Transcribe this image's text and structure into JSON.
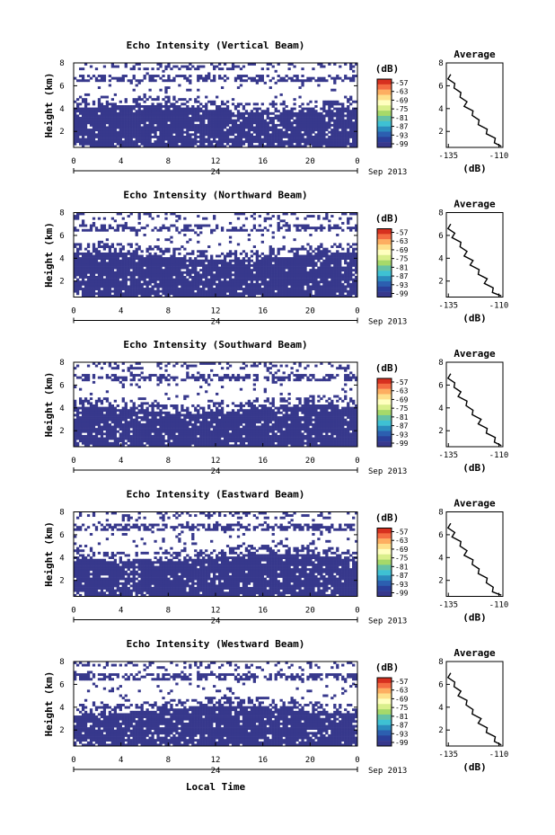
{
  "figure": {
    "xlabel": "Local Time",
    "colorbar_unit": "(dB)",
    "colorbar_ticks": [
      "-57",
      "-63",
      "-69",
      "-75",
      "-81",
      "-87",
      "-93",
      "-99"
    ],
    "colorbar_colors": [
      "#d7301f",
      "#f46d43",
      "#fdae61",
      "#fee08b",
      "#ffffbf",
      "#d9ef8b",
      "#a6d96a",
      "#66c2a5",
      "#3ec1d3",
      "#2b8cbe",
      "#2c5fb0",
      "#2b3f9a",
      "#37388c"
    ],
    "fill_color": "#37388c"
  },
  "chart_data": [
    {
      "type": "heatmap",
      "title": "Echo Intensity (Vertical Beam)",
      "ylabel": "Height (km)",
      "x_ticks": [
        "0",
        "4",
        "8",
        "12",
        "16",
        "20",
        "0"
      ],
      "y_ticks": [
        "8",
        "6",
        "4",
        "2"
      ],
      "date_label": "24",
      "date_suffix": "Sep 2013",
      "xlim": [
        0,
        24
      ],
      "ylim": [
        0.6,
        8.0
      ],
      "solid_top_km": 4.0,
      "profile": {
        "title": "Average",
        "xlabel": "(dB)",
        "x_ticks": [
          "-135",
          "-110"
        ],
        "y_ticks": [
          "8",
          "6",
          "4",
          "2"
        ],
        "xlim": [
          -136,
          -108
        ],
        "ylim": [
          0.6,
          8.0
        ],
        "heights": [
          7.0,
          6.6,
          6.2,
          5.8,
          5.4,
          5.0,
          4.6,
          4.2,
          3.8,
          3.4,
          3.0,
          2.6,
          2.2,
          1.8,
          1.4,
          1.0,
          0.7
        ],
        "values": [
          -135,
          -134,
          -133,
          -131,
          -130,
          -128,
          -127,
          -126,
          -124,
          -122,
          -121,
          -119,
          -117,
          -115,
          -113,
          -111,
          -110
        ]
      }
    },
    {
      "type": "heatmap",
      "title": "Echo Intensity (Northward Beam)",
      "ylabel": "Height (km)",
      "x_ticks": [
        "0",
        "4",
        "8",
        "12",
        "16",
        "20",
        "0"
      ],
      "y_ticks": [
        "8",
        "6",
        "4",
        "2"
      ],
      "date_label": "24",
      "date_suffix": "Sep 2013",
      "xlim": [
        0,
        24
      ],
      "ylim": [
        0.6,
        8.0
      ],
      "solid_top_km": 4.2,
      "profile": {
        "title": "Average",
        "xlabel": "(dB)",
        "x_ticks": [
          "-135",
          "-110"
        ],
        "y_ticks": [
          "8",
          "6",
          "4",
          "2"
        ],
        "xlim": [
          -136,
          -108
        ],
        "ylim": [
          0.6,
          8.0
        ],
        "heights": [
          7.0,
          6.6,
          6.2,
          5.8,
          5.4,
          5.0,
          4.6,
          4.2,
          3.8,
          3.4,
          3.0,
          2.6,
          2.2,
          1.8,
          1.4,
          1.0,
          0.7
        ],
        "values": [
          -135,
          -134,
          -133,
          -132,
          -130,
          -128,
          -127,
          -126,
          -124,
          -123,
          -121,
          -119,
          -117,
          -116,
          -114,
          -112,
          -110
        ]
      }
    },
    {
      "type": "heatmap",
      "title": "Echo Intensity (Southward Beam)",
      "ylabel": "Height (km)",
      "x_ticks": [
        "0",
        "4",
        "8",
        "12",
        "16",
        "20",
        "0"
      ],
      "y_ticks": [
        "8",
        "6",
        "4",
        "2"
      ],
      "date_label": "24",
      "date_suffix": "Sep 2013",
      "xlim": [
        0,
        24
      ],
      "ylim": [
        0.6,
        8.0
      ],
      "solid_top_km": 3.9,
      "profile": {
        "title": "Average",
        "xlabel": "(dB)",
        "x_ticks": [
          "-135",
          "-110"
        ],
        "y_ticks": [
          "8",
          "6",
          "4",
          "2"
        ],
        "xlim": [
          -136,
          -108
        ],
        "ylim": [
          0.6,
          8.0
        ],
        "heights": [
          7.0,
          6.6,
          6.2,
          5.8,
          5.4,
          5.0,
          4.6,
          4.2,
          3.8,
          3.4,
          3.0,
          2.6,
          2.2,
          1.8,
          1.4,
          1.0,
          0.7
        ],
        "values": [
          -135,
          -134,
          -133,
          -131,
          -130,
          -129,
          -127,
          -125,
          -124,
          -122,
          -120,
          -119,
          -117,
          -115,
          -113,
          -111,
          -110
        ]
      }
    },
    {
      "type": "heatmap",
      "title": "Echo Intensity (Eastward Beam)",
      "ylabel": "Height (km)",
      "x_ticks": [
        "0",
        "4",
        "8",
        "12",
        "16",
        "20",
        "0"
      ],
      "y_ticks": [
        "8",
        "6",
        "4",
        "2"
      ],
      "date_label": "24",
      "date_suffix": "Sep 2013",
      "xlim": [
        0,
        24
      ],
      "ylim": [
        0.6,
        8.0
      ],
      "solid_top_km": 4.0,
      "profile": {
        "title": "Average",
        "xlabel": "(dB)",
        "x_ticks": [
          "-135",
          "-110"
        ],
        "y_ticks": [
          "8",
          "6",
          "4",
          "2"
        ],
        "xlim": [
          -136,
          -108
        ],
        "ylim": [
          0.6,
          8.0
        ],
        "heights": [
          7.0,
          6.6,
          6.2,
          5.8,
          5.4,
          5.0,
          4.6,
          4.2,
          3.8,
          3.4,
          3.0,
          2.6,
          2.2,
          1.8,
          1.4,
          1.0,
          0.7
        ],
        "values": [
          -135,
          -134,
          -133,
          -132,
          -130,
          -128,
          -127,
          -126,
          -124,
          -122,
          -121,
          -119,
          -117,
          -115,
          -114,
          -112,
          -110
        ]
      }
    },
    {
      "type": "heatmap",
      "title": "Echo Intensity (Westward Beam)",
      "ylabel": "Height (km)",
      "x_ticks": [
        "0",
        "4",
        "8",
        "12",
        "16",
        "20",
        "0"
      ],
      "y_ticks": [
        "8",
        "6",
        "4",
        "2"
      ],
      "date_label": "24",
      "date_suffix": "Sep 2013",
      "xlim": [
        0,
        24
      ],
      "ylim": [
        0.6,
        8.0
      ],
      "solid_top_km": 3.8,
      "profile": {
        "title": "Average",
        "xlabel": "(dB)",
        "x_ticks": [
          "-135",
          "-110"
        ],
        "y_ticks": [
          "8",
          "6",
          "4",
          "2"
        ],
        "xlim": [
          -136,
          -108
        ],
        "ylim": [
          0.6,
          8.0
        ],
        "heights": [
          7.0,
          6.6,
          6.2,
          5.8,
          5.4,
          5.0,
          4.6,
          4.2,
          3.8,
          3.4,
          3.0,
          2.6,
          2.2,
          1.8,
          1.4,
          1.0,
          0.7
        ],
        "values": [
          -135,
          -134,
          -133,
          -131,
          -130,
          -129,
          -127,
          -125,
          -124,
          -122,
          -120,
          -119,
          -117,
          -115,
          -113,
          -111,
          -110
        ]
      }
    }
  ]
}
